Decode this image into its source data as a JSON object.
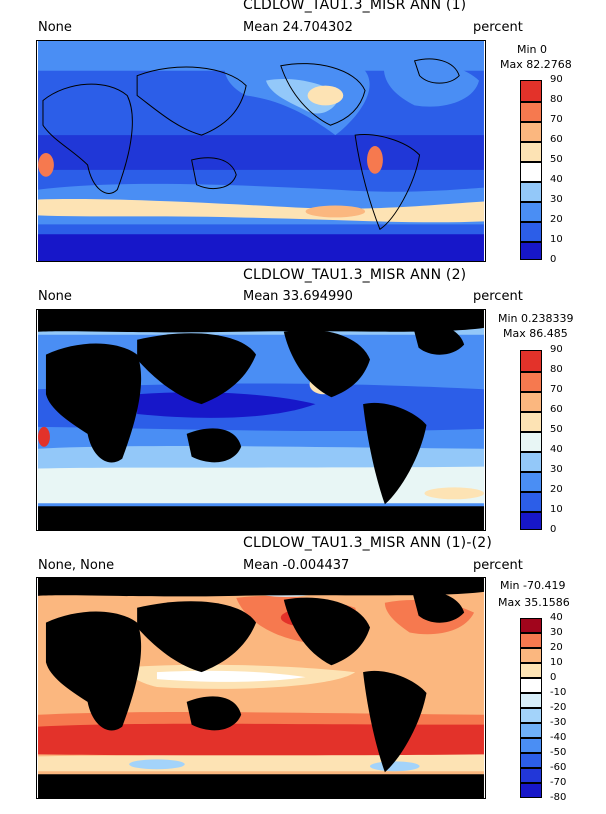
{
  "chart_data": [
    {
      "type": "heatmap",
      "title": "CLDLOW_TAU1.3_MISR ANN (1)",
      "left_label": "None",
      "mean_label": "Mean 24.704302",
      "units": "percent",
      "min_label": "Min 0",
      "max_label": "Max 82.2768",
      "colorbar": {
        "levels": [
          "0",
          "10",
          "20",
          "30",
          "40",
          "50",
          "60",
          "70",
          "80",
          "90"
        ],
        "colors": [
          "#1717c9",
          "#2c5ee8",
          "#4a8ef4",
          "#93c8f9",
          "#ffffff",
          "#fde3b4",
          "#fbb77f",
          "#f6794f",
          "#e3322a",
          "#a1051c"
        ]
      },
      "land_masked": false
    },
    {
      "type": "heatmap",
      "title": "CLDLOW_TAU1.3_MISR ANN (2)",
      "left_label": "None",
      "mean_label": "Mean 33.694990",
      "units": "percent",
      "min_label": "Min 0.238339",
      "max_label": "Max 86.485",
      "colorbar": {
        "levels": [
          "0",
          "10",
          "20",
          "30",
          "40",
          "50",
          "60",
          "70",
          "80",
          "90"
        ],
        "colors": [
          "#1717c9",
          "#2c5ee8",
          "#4a8ef4",
          "#93c8f9",
          "#e8f6f5",
          "#fde3b4",
          "#fbb77f",
          "#f6794f",
          "#e3322a",
          "#a1051c"
        ]
      },
      "land_masked": true
    },
    {
      "type": "heatmap",
      "title": "CLDLOW_TAU1.3_MISR ANN (1)-(2)",
      "left_label": "None, None",
      "mean_label": "Mean -0.004437",
      "units": "percent",
      "min_label": "Min -70.419",
      "max_label": "Max 35.1586",
      "colorbar": {
        "levels": [
          "-80",
          "-70",
          "-60",
          "-50",
          "-40",
          "-30",
          "-20",
          "-10",
          "0",
          "10",
          "20",
          "30",
          "40"
        ],
        "colors": [
          "#1717c9",
          "#2237d8",
          "#2c5ee8",
          "#4a8ef4",
          "#6fb0f7",
          "#a3d3fa",
          "#d7eefa",
          "#ffffff",
          "#fde3b4",
          "#fbb77f",
          "#f6794f",
          "#e3322a",
          "#a1051c"
        ]
      },
      "land_masked": true
    }
  ]
}
